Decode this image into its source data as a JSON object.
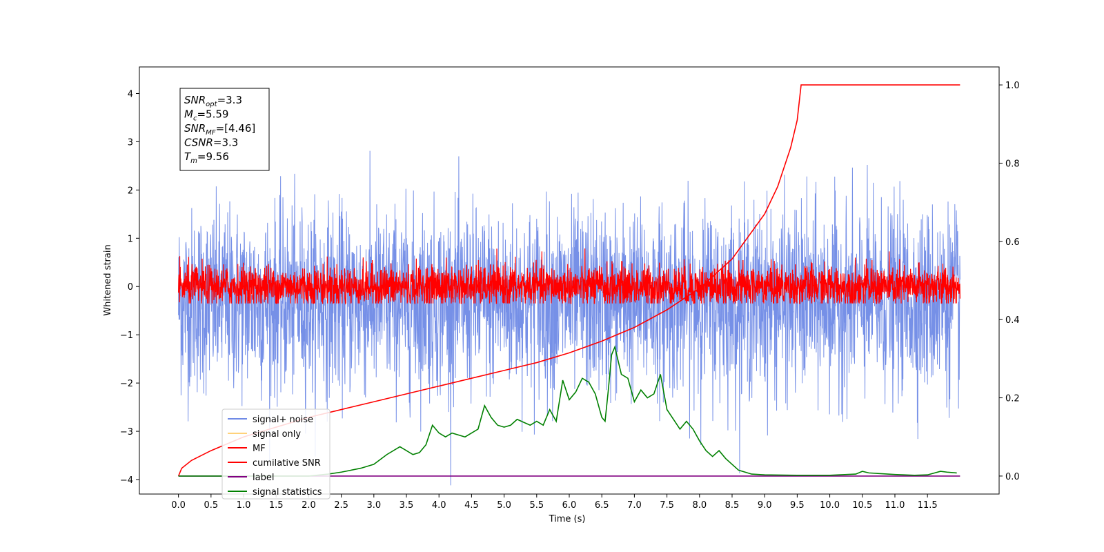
{
  "chart_data": {
    "type": "line",
    "xlabel": "Time (s)",
    "ylabel": "Whitened strain",
    "xlim": [
      -0.6,
      12.6
    ],
    "ylim": [
      -4.3,
      4.55
    ],
    "y2lim": [
      -0.046,
      1.046
    ],
    "x_ticks": [
      0.0,
      0.5,
      1.0,
      1.5,
      2.0,
      2.5,
      3.0,
      3.5,
      4.0,
      4.5,
      5.0,
      5.5,
      6.0,
      6.5,
      7.0,
      7.5,
      8.0,
      8.5,
      9.0,
      9.5,
      10.0,
      10.5,
      11.0,
      11.5
    ],
    "x_tick_labels": [
      "0.0",
      "0.5",
      "1.0",
      "1.5",
      "2.0",
      "2.5",
      "3.0",
      "3.5",
      "4.0",
      "4.5",
      "5.0",
      "5.5",
      "6.0",
      "6.5",
      "7.0",
      "7.5",
      "8.0",
      "8.5",
      "9.0",
      "9.5",
      "10.0",
      "10.5",
      "11.0",
      "11.5"
    ],
    "y_ticks": [
      4,
      3,
      2,
      1,
      0,
      -1,
      -2,
      -3,
      -4
    ],
    "y_tick_labels": [
      "4",
      "3",
      "2",
      "1",
      "0",
      "−1",
      "−2",
      "−3",
      "−4"
    ],
    "y2_ticks": [
      1.0,
      0.8,
      0.6,
      0.4,
      0.2,
      0.0
    ],
    "y2_tick_labels": [
      "1.0",
      "0.8",
      "0.6",
      "0.4",
      "0.2",
      "0.0"
    ],
    "grid": false,
    "legend_position": "lower-left",
    "duration": 12.0,
    "annotation": [
      {
        "base": "SNR",
        "sub": "opt",
        "value": "=3.3"
      },
      {
        "base": "M",
        "sub": "c",
        "value": "=5.59"
      },
      {
        "base": "SNR",
        "sub": "MF",
        "value": "=[4.46]"
      },
      {
        "base": "CSNR",
        "sub": "",
        "value": "=3.3"
      },
      {
        "base": "T",
        "sub": "m",
        "value": "=9.56"
      }
    ],
    "series": [
      {
        "name": "signal+ noise",
        "color": "#6f8ae6",
        "axis": "left",
        "kind": "noise",
        "amplitude": 0.95,
        "offset": -0.3
      },
      {
        "name": "signal only",
        "color": "#ffd27a",
        "axis": "left",
        "kind": "none"
      },
      {
        "name": "MF",
        "color": "#ff0000",
        "axis": "left",
        "kind": "noise",
        "amplitude": 0.22,
        "offset": 0.0
      },
      {
        "name": "cumilative SNR",
        "color": "#ff0000",
        "axis": "right",
        "kind": "curve",
        "x": [
          0.0,
          0.05,
          0.2,
          0.5,
          1.0,
          1.5,
          2.0,
          2.5,
          3.0,
          3.5,
          4.0,
          4.5,
          5.0,
          5.5,
          6.0,
          6.5,
          7.0,
          7.5,
          8.0,
          8.5,
          9.0,
          9.2,
          9.4,
          9.5,
          9.56,
          12.0
        ],
        "y": [
          0.0,
          0.02,
          0.04,
          0.065,
          0.1,
          0.125,
          0.15,
          0.17,
          0.19,
          0.21,
          0.23,
          0.25,
          0.27,
          0.29,
          0.315,
          0.345,
          0.38,
          0.425,
          0.48,
          0.555,
          0.67,
          0.74,
          0.84,
          0.91,
          1.0,
          1.0
        ]
      },
      {
        "name": "label",
        "color": "#800080",
        "axis": "right",
        "kind": "curve",
        "x": [
          0.0,
          12.0
        ],
        "y": [
          0.0,
          0.0
        ]
      },
      {
        "name": "signal statistics",
        "color": "#008000",
        "axis": "right",
        "kind": "curve",
        "x": [
          0.0,
          1.0,
          2.0,
          2.3,
          2.5,
          2.8,
          3.0,
          3.2,
          3.4,
          3.5,
          3.6,
          3.7,
          3.8,
          3.9,
          4.0,
          4.1,
          4.2,
          4.4,
          4.5,
          4.6,
          4.7,
          4.8,
          4.9,
          5.0,
          5.1,
          5.2,
          5.4,
          5.5,
          5.6,
          5.7,
          5.8,
          5.9,
          6.0,
          6.1,
          6.2,
          6.3,
          6.4,
          6.5,
          6.55,
          6.6,
          6.65,
          6.7,
          6.8,
          6.9,
          7.0,
          7.1,
          7.2,
          7.3,
          7.4,
          7.5,
          7.6,
          7.7,
          7.8,
          7.9,
          8.0,
          8.1,
          8.2,
          8.3,
          8.4,
          8.6,
          8.8,
          9.0,
          9.5,
          10.0,
          10.4,
          10.5,
          10.6,
          11.0,
          11.3,
          11.5,
          11.7,
          11.8,
          11.95
        ],
        "y": [
          0.0,
          0.0,
          0.0,
          0.005,
          0.01,
          0.02,
          0.03,
          0.055,
          0.075,
          0.065,
          0.055,
          0.06,
          0.08,
          0.13,
          0.11,
          0.1,
          0.11,
          0.1,
          0.11,
          0.12,
          0.18,
          0.15,
          0.13,
          0.125,
          0.13,
          0.145,
          0.13,
          0.14,
          0.13,
          0.17,
          0.14,
          0.245,
          0.195,
          0.215,
          0.25,
          0.24,
          0.21,
          0.15,
          0.14,
          0.22,
          0.31,
          0.33,
          0.26,
          0.25,
          0.19,
          0.22,
          0.2,
          0.21,
          0.26,
          0.17,
          0.145,
          0.12,
          0.14,
          0.12,
          0.09,
          0.065,
          0.05,
          0.065,
          0.045,
          0.015,
          0.005,
          0.003,
          0.002,
          0.002,
          0.005,
          0.012,
          0.008,
          0.004,
          0.002,
          0.003,
          0.012,
          0.01,
          0.008
        ]
      }
    ]
  }
}
